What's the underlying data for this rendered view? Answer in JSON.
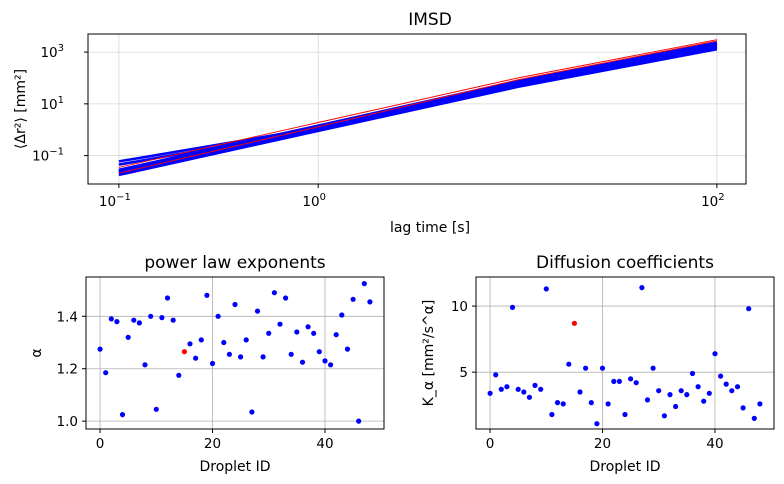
{
  "chart_data": [
    {
      "type": "line",
      "title": "IMSD",
      "xlabel": "lag time [s]",
      "ylabel": "⟨Δr²⟩ [mm²]",
      "xscale": "log",
      "yscale": "log",
      "xlim": [
        0.07,
        140
      ],
      "ylim": [
        0.008,
        5000
      ],
      "grid": true,
      "xticks": [
        "10",
        "10",
        "10"
      ],
      "xtick_exps": [
        "−1",
        "0",
        "2"
      ],
      "xtick_values": [
        0.1,
        1,
        100
      ],
      "yticks": [
        "10",
        "10",
        "10"
      ],
      "ytick_exps": [
        "−1",
        "1",
        "3"
      ],
      "ytick_values": [
        0.1,
        10,
        1000
      ],
      "series_color": "#0000ff",
      "highlight_color": "#ff0000",
      "series": [
        {
          "x": [
            0.1,
            1,
            10,
            100
          ],
          "y": [
            0.018,
            0.9,
            45,
            1300
          ]
        },
        {
          "x": [
            0.1,
            1,
            10,
            100
          ],
          "y": [
            0.02,
            1.0,
            52,
            1500
          ]
        },
        {
          "x": [
            0.1,
            1,
            10,
            100
          ],
          "y": [
            0.022,
            1.1,
            58,
            1700
          ]
        },
        {
          "x": [
            0.1,
            1,
            10,
            100
          ],
          "y": [
            0.024,
            1.2,
            64,
            1900
          ]
        },
        {
          "x": [
            0.1,
            1,
            10,
            100
          ],
          "y": [
            0.026,
            1.35,
            70,
            2100
          ]
        },
        {
          "x": [
            0.1,
            1,
            10,
            100
          ],
          "y": [
            0.028,
            1.45,
            76,
            2300
          ]
        },
        {
          "x": [
            0.1,
            1,
            10,
            100
          ],
          "y": [
            0.06,
            1.2,
            55,
            1600
          ]
        },
        {
          "x": [
            0.1,
            1,
            10,
            100
          ],
          "y": [
            0.045,
            1.0,
            48,
            1300
          ]
        },
        {
          "x": [
            0.1,
            1,
            10,
            100
          ],
          "y": [
            0.021,
            1.3,
            85,
            2700
          ],
          "highlight": true
        },
        {
          "x": [
            0.1,
            1,
            10,
            100
          ],
          "y": [
            0.035,
            1.9,
            100,
            3000
          ],
          "highlight": true
        }
      ]
    },
    {
      "type": "scatter",
      "title": "power law exponents",
      "xlabel": "Droplet ID",
      "ylabel": "α",
      "xlim": [
        -2.5,
        50.5
      ],
      "ylim": [
        0.97,
        1.55
      ],
      "grid": true,
      "xticks": [
        "0",
        "20",
        "40"
      ],
      "xtick_values": [
        0,
        20,
        40
      ],
      "yticks": [
        "1.0",
        "1.2",
        "1.4"
      ],
      "ytick_values": [
        1.0,
        1.2,
        1.4
      ],
      "point_color": "#0000ff",
      "highlight_color": "#ff0000",
      "highlight_index": 15,
      "x": [
        0,
        1,
        2,
        3,
        4,
        5,
        6,
        7,
        8,
        9,
        10,
        11,
        12,
        13,
        14,
        15,
        16,
        17,
        18,
        19,
        20,
        21,
        22,
        23,
        24,
        25,
        26,
        27,
        28,
        29,
        30,
        31,
        32,
        33,
        34,
        35,
        36,
        37,
        38,
        39,
        40,
        41,
        42,
        43,
        44,
        45,
        46,
        47,
        48
      ],
      "y": [
        1.275,
        1.185,
        1.39,
        1.38,
        1.025,
        1.32,
        1.385,
        1.375,
        1.215,
        1.4,
        1.045,
        1.395,
        1.47,
        1.385,
        1.175,
        1.265,
        1.295,
        1.24,
        1.31,
        1.48,
        1.22,
        1.4,
        1.3,
        1.255,
        1.445,
        1.245,
        1.31,
        1.035,
        1.42,
        1.245,
        1.335,
        1.49,
        1.37,
        1.47,
        1.255,
        1.34,
        1.225,
        1.36,
        1.335,
        1.265,
        1.23,
        1.215,
        1.33,
        1.405,
        1.275,
        1.465,
        1.0,
        1.525,
        1.455
      ]
    },
    {
      "type": "scatter",
      "title": "Diffusion coefficients",
      "xlabel": "Droplet ID",
      "ylabel": "K_α [mm²/s^α]",
      "xlim": [
        -2.5,
        50.5
      ],
      "ylim": [
        0.7,
        12.2
      ],
      "grid": true,
      "xticks": [
        "0",
        "20",
        "40"
      ],
      "xtick_values": [
        0,
        20,
        40
      ],
      "yticks": [
        "5",
        "10"
      ],
      "ytick_values": [
        5,
        10
      ],
      "point_color": "#0000ff",
      "highlight_color": "#ff0000",
      "highlight_index": 15,
      "x": [
        0,
        1,
        2,
        3,
        4,
        5,
        6,
        7,
        8,
        9,
        10,
        11,
        12,
        13,
        14,
        15,
        16,
        17,
        18,
        19,
        20,
        21,
        22,
        23,
        24,
        25,
        26,
        27,
        28,
        29,
        30,
        31,
        32,
        33,
        34,
        35,
        36,
        37,
        38,
        39,
        40,
        41,
        42,
        43,
        44,
        45,
        46,
        47,
        48
      ],
      "y": [
        3.4,
        4.8,
        3.7,
        3.9,
        9.9,
        3.7,
        3.5,
        3.1,
        4.0,
        3.7,
        11.3,
        1.8,
        2.7,
        2.6,
        5.6,
        8.7,
        3.5,
        5.3,
        2.7,
        1.1,
        5.3,
        2.6,
        4.3,
        4.3,
        1.8,
        4.5,
        4.2,
        11.4,
        2.9,
        5.3,
        3.6,
        1.7,
        3.3,
        2.4,
        3.6,
        3.3,
        4.9,
        3.9,
        2.8,
        3.4,
        6.4,
        4.7,
        4.1,
        3.6,
        3.9,
        2.3,
        9.8,
        1.5,
        2.6
      ]
    }
  ]
}
